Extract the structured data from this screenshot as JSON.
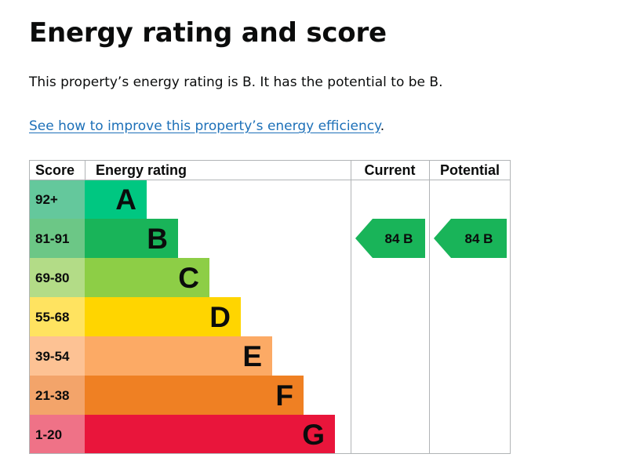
{
  "page": {
    "title": "Energy rating and score",
    "summary": "This property’s energy rating is B. It has the potential to be B.",
    "link_text": "See how to improve this property’s energy efficiency",
    "link_suffix": "."
  },
  "chart_data": {
    "type": "table",
    "headers": {
      "score": "Score",
      "rating": "Energy rating",
      "current": "Current",
      "potential": "Potential"
    },
    "bands": [
      {
        "score": "92+",
        "letter": "A",
        "bar_color": "#00c781",
        "score_bg": "#64c89c",
        "letter_color": "#0b0c0c"
      },
      {
        "score": "81-91",
        "letter": "B",
        "bar_color": "#19b459",
        "score_bg": "#6cc786",
        "letter_color": "#0b0c0c"
      },
      {
        "score": "69-80",
        "letter": "C",
        "bar_color": "#8dce46",
        "score_bg": "#b3dc87",
        "letter_color": "#0b0c0c"
      },
      {
        "score": "55-68",
        "letter": "D",
        "bar_color": "#ffd500",
        "score_bg": "#ffe360",
        "letter_color": "#0b0c0c"
      },
      {
        "score": "39-54",
        "letter": "E",
        "bar_color": "#fcaa65",
        "score_bg": "#fdc294",
        "letter_color": "#0b0c0c"
      },
      {
        "score": "21-38",
        "letter": "F",
        "bar_color": "#ef8023",
        "score_bg": "#f3a46a",
        "letter_color": "#0b0c0c"
      },
      {
        "score": "1-20",
        "letter": "G",
        "bar_color": "#e9153b",
        "score_bg": "#ef7287",
        "letter_color": "#0b0c0c"
      }
    ],
    "current": {
      "score": 84,
      "band": "B",
      "label": "84  B",
      "color": "#19b459"
    },
    "potential": {
      "score": 84,
      "band": "B",
      "label": "84  B",
      "color": "#19b459"
    }
  }
}
